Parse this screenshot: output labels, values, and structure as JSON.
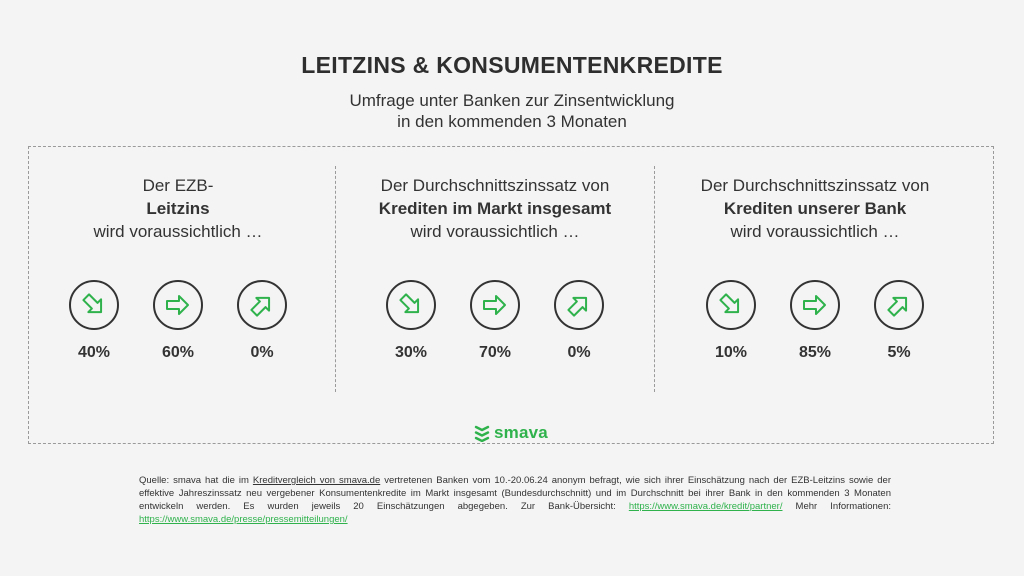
{
  "header": {
    "title": "LEITZINS & KONSUMENTENKREDITE",
    "subtitle_line1": "Umfrage unter Banken zur Zinsentwicklung",
    "subtitle_line2": "in den kommenden 3 Monaten"
  },
  "colors": {
    "accent": "#2fb24c",
    "text": "#333333",
    "background": "#f4f4f4",
    "border": "#9a9a9a"
  },
  "chart_data": [
    {
      "type": "table",
      "heading_line1": "Der EZB-",
      "heading_bold": "Leitzins",
      "heading_line3": "wird voraussichtlich …",
      "categories": [
        "sinken",
        "gleich bleiben",
        "steigen"
      ],
      "icons": [
        "arrow-down-right-icon",
        "arrow-right-icon",
        "arrow-up-right-icon"
      ],
      "values": [
        "40%",
        "60%",
        "0%"
      ]
    },
    {
      "type": "table",
      "heading_line1": "Der Durchschnittszinssatz von",
      "heading_bold": "Krediten im Markt insgesamt",
      "heading_line3": "wird voraussichtlich …",
      "categories": [
        "sinken",
        "gleich bleiben",
        "steigen"
      ],
      "icons": [
        "arrow-down-right-icon",
        "arrow-right-icon",
        "arrow-up-right-icon"
      ],
      "values": [
        "30%",
        "70%",
        "0%"
      ]
    },
    {
      "type": "table",
      "heading_line1": "Der Durchschnittszinssatz von",
      "heading_bold": "Krediten unserer Bank",
      "heading_line3": "wird voraussichtlich …",
      "categories": [
        "sinken",
        "gleich bleiben",
        "steigen"
      ],
      "icons": [
        "arrow-down-right-icon",
        "arrow-right-icon",
        "arrow-up-right-icon"
      ],
      "values": [
        "10%",
        "85%",
        "5%"
      ]
    }
  ],
  "logo": {
    "text": "smava",
    "icon": "smava-logo-icon"
  },
  "source": {
    "part1": "Quelle: smava hat die im ",
    "link1": "Kreditvergleich von smava.de",
    "part2": " vertretenen Banken vom 10.-20.06.24 anonym befragt, wie sich ihrer Einschätzung nach der EZB-Leitzins sowie der effektive Jahreszinssatz neu vergebener Konsumentenkredite im Markt insgesamt (Bundesdurchschnitt) und im Durchschnitt bei ihrer Bank in den kommenden 3 Monaten entwickeln werden. Es wurden jeweils 20 Einschätzungen abgegeben. Zur Bank-Übersicht: ",
    "link2": "https://www.smava.de/kredit/partner/",
    "part3": " Mehr Informationen: ",
    "link3": "https://www.smava.de/presse/pressemitteilungen/"
  }
}
